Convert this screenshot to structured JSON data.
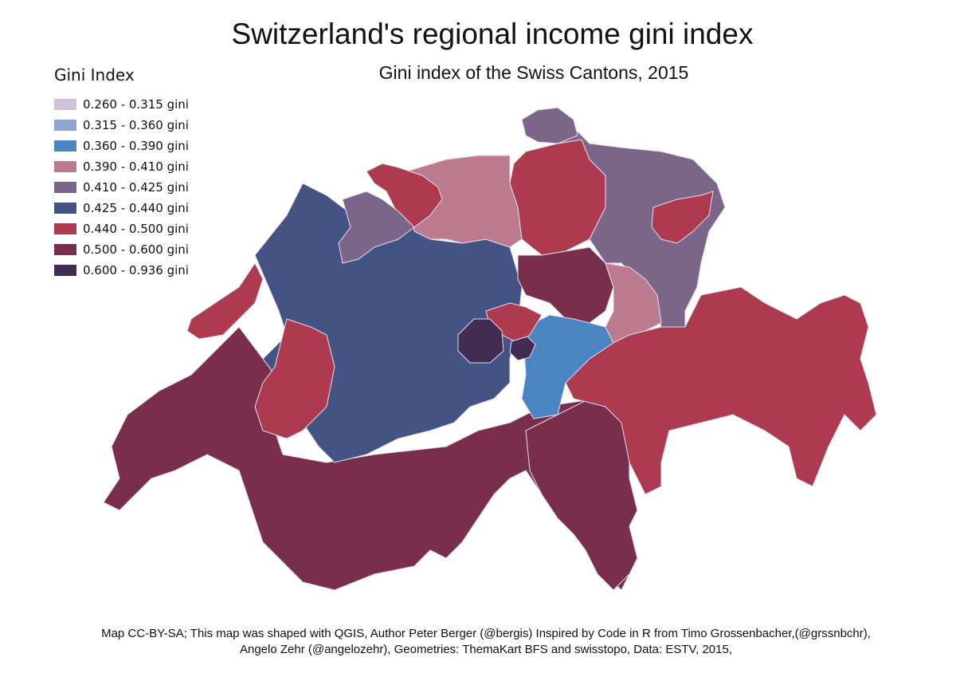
{
  "title": "Switzerland's regional income gini index",
  "subtitle": "Gini index of the Swiss Cantons, 2015",
  "legend": {
    "title": "Gini Index",
    "items": [
      {
        "label": "0.260 - 0.315 gini",
        "color": "#d2c1d8"
      },
      {
        "label": "0.315 - 0.360 gini",
        "color": "#8fa5cf"
      },
      {
        "label": "0.360 - 0.390 gini",
        "color": "#4a85c2"
      },
      {
        "label": "0.390 - 0.410 gini",
        "color": "#bc7a8e"
      },
      {
        "label": "0.410 - 0.425 gini",
        "color": "#7b6689"
      },
      {
        "label": "0.425 - 0.440 gini",
        "color": "#435384"
      },
      {
        "label": "0.440 - 0.500 gini",
        "color": "#ad3a4e"
      },
      {
        "label": "0.500 - 0.600 gini",
        "color": "#792f4b"
      },
      {
        "label": "0.600 - 0.936 gini",
        "color": "#422c51"
      }
    ]
  },
  "footer": {
    "line1": "Map CC-BY-SA; This map was shaped with QGIS, Author Peter Berger (@bergis) Inspired by Code in R from Timo Grossenbacher,(@grssnbchr),",
    "line2": "Angelo Zehr (@angelozehr), Geometries: ThemaKart BFS and swisstopo, Data: ESTV, 2015,"
  }
}
